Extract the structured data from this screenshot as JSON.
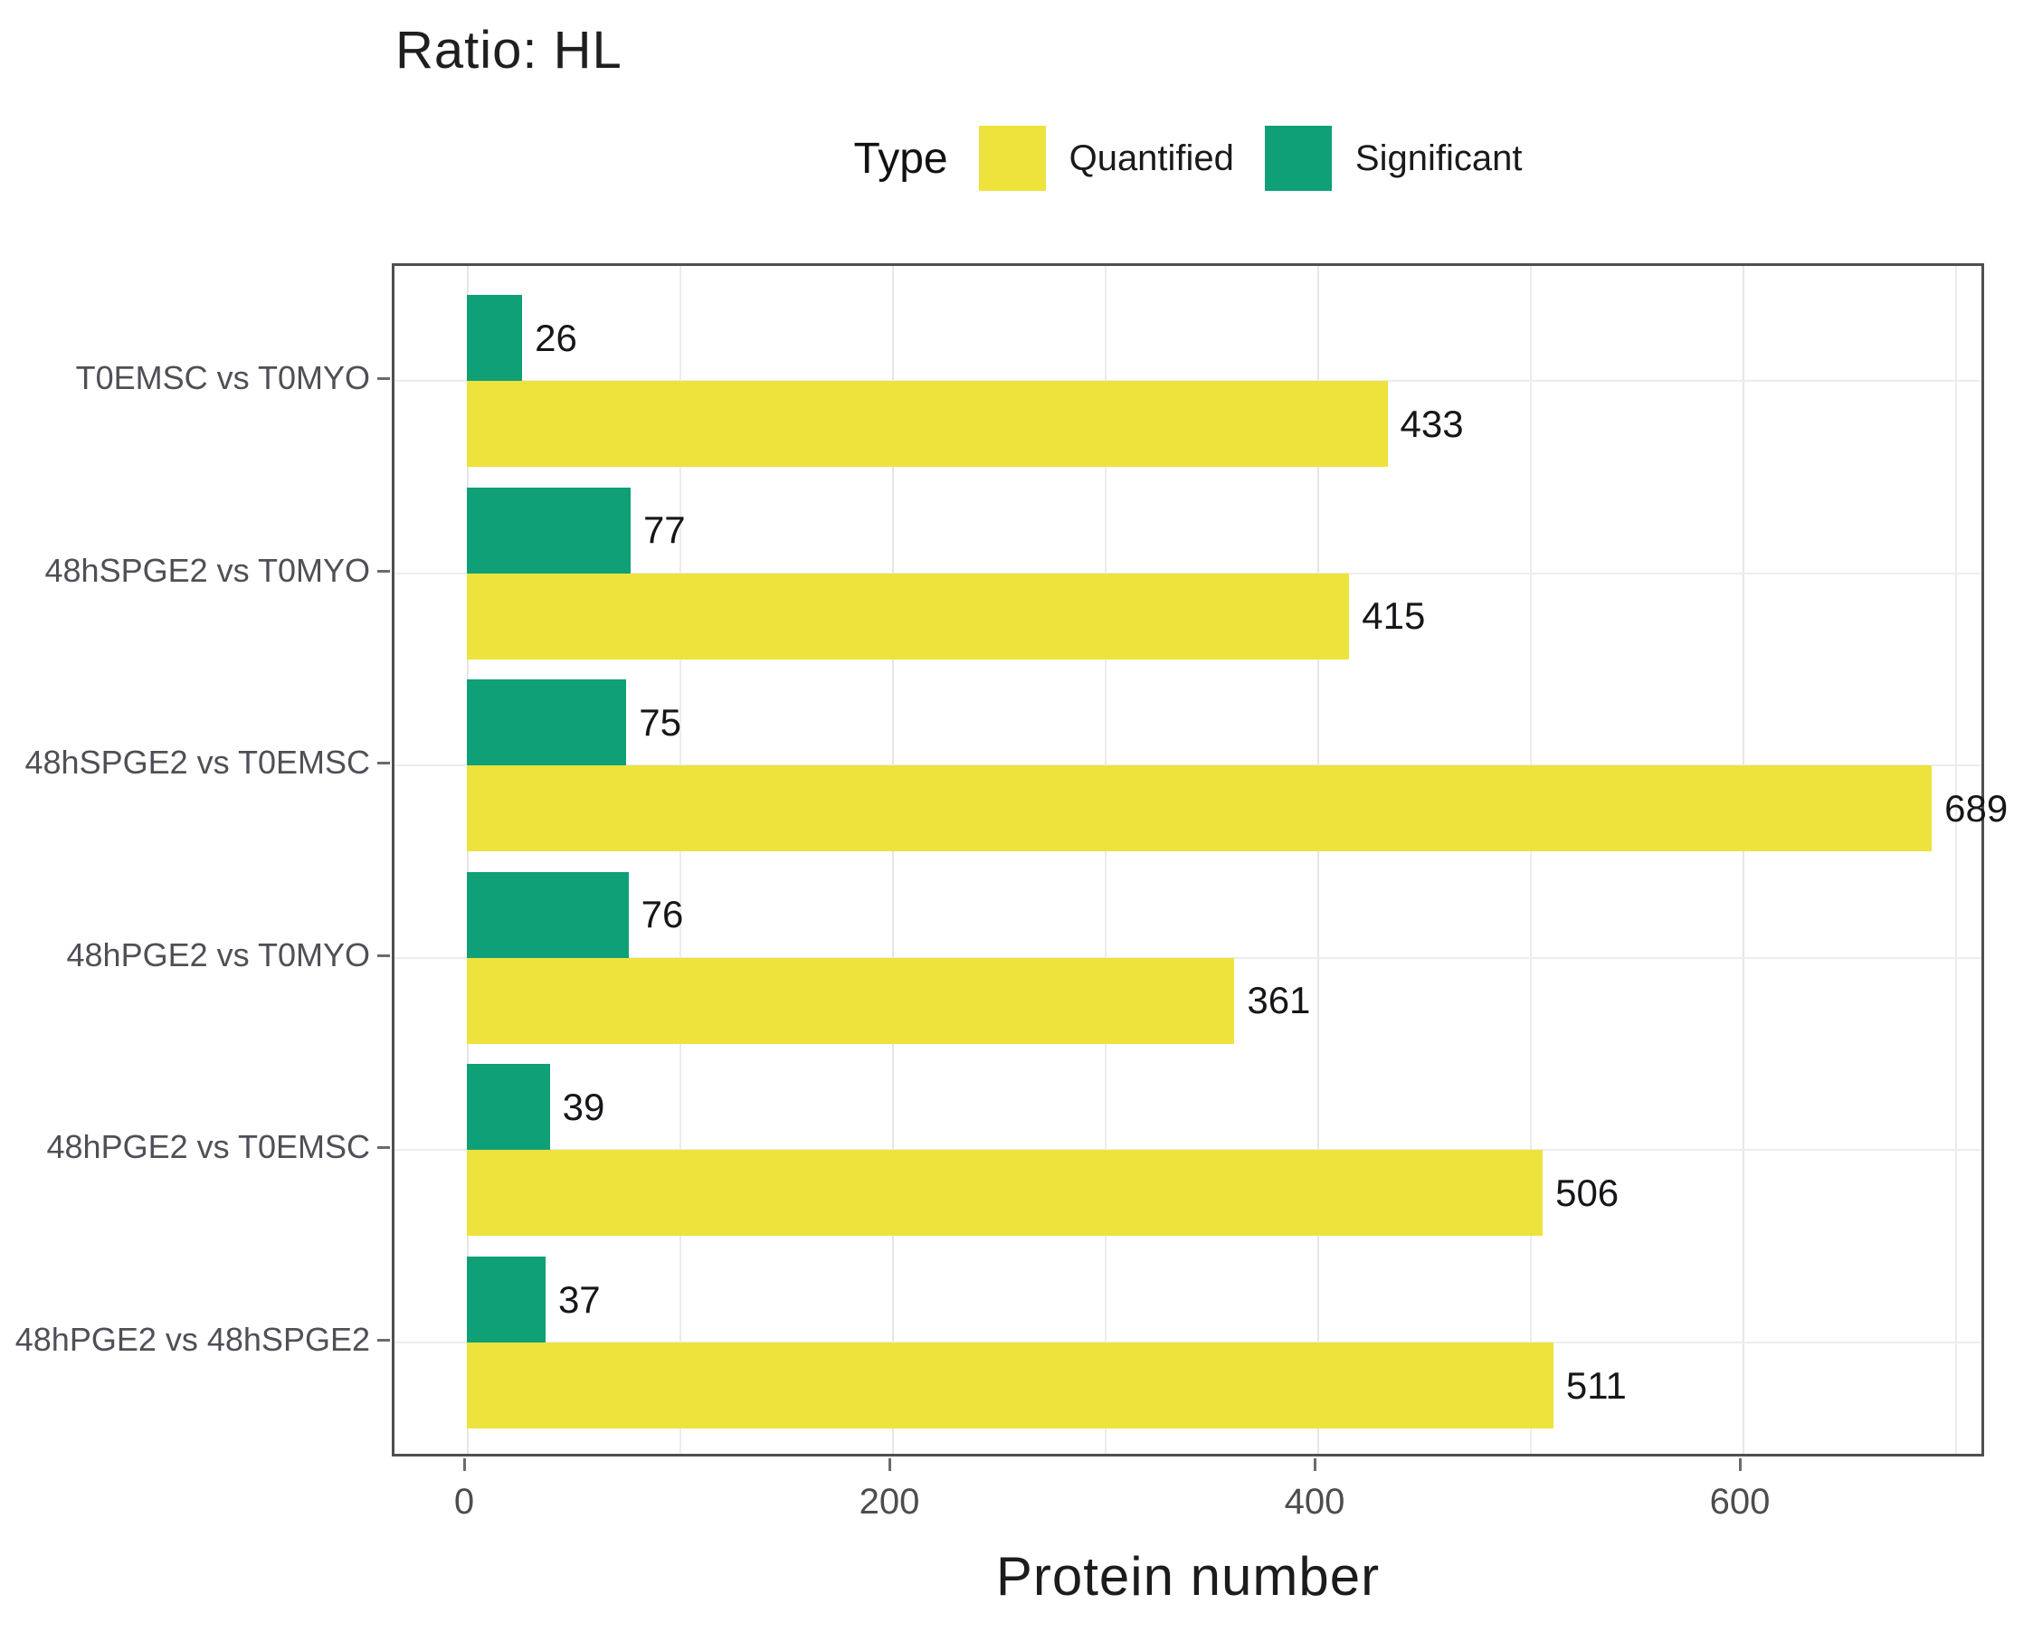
{
  "title": "Ratio: HL",
  "legend": {
    "title": "Type",
    "items": [
      {
        "label": "Quantified",
        "color": "#EDE33C"
      },
      {
        "label": "Significant",
        "color": "#0FA077"
      }
    ]
  },
  "chart_data": {
    "type": "bar",
    "orientation": "horizontal",
    "title": "Ratio: HL",
    "xlabel": "Protein number",
    "ylabel": "",
    "legend_title": "Type",
    "legend_position": "top-center",
    "categories": [
      "T0EMSC vs T0MYO",
      "48hSPGE2 vs T0MYO",
      "48hSPGE2 vs T0EMSC",
      "48hPGE2 vs T0MYO",
      "48hPGE2 vs T0EMSC",
      "48hPGE2 vs 48hSPGE2"
    ],
    "series": [
      {
        "name": "Significant",
        "color": "#0FA077",
        "values": [
          26,
          77,
          75,
          76,
          39,
          37
        ]
      },
      {
        "name": "Quantified",
        "color": "#EDE33C",
        "values": [
          433,
          415,
          689,
          361,
          506,
          511
        ]
      }
    ],
    "bar_value_labels": true,
    "xticks": [
      0,
      200,
      400,
      600
    ],
    "xlim": [
      -34,
      715
    ],
    "grid": "light vertical lines every 100 units; light horizontal line at each category center",
    "panel_border_color": "#4f4f4f",
    "axis_text_color": "#4d4d4d"
  }
}
